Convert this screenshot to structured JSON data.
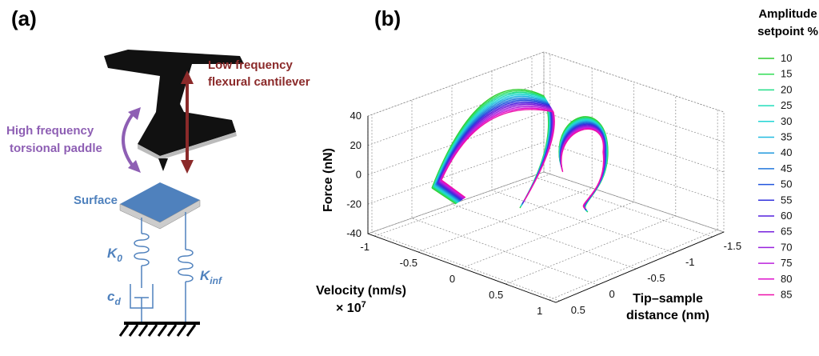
{
  "panel_a": {
    "label": "(a)",
    "flexural": [
      "Low frequency",
      "flexural cantilever"
    ],
    "torsional": [
      "High frequency",
      "torsional paddle"
    ],
    "surface": "Surface",
    "k0": {
      "main": "K",
      "sub": "0"
    },
    "kinf": {
      "main": "K",
      "sub": "inf"
    },
    "cd": {
      "main": "c",
      "sub": "d"
    }
  },
  "panel_b": {
    "label": "(b)",
    "z_axis_label": "Force (nN)",
    "z_ticks": [
      "40",
      "20",
      "0",
      "-20",
      "-40"
    ],
    "x_axis_label": "Velocity (nm/s)",
    "x_scale": {
      "base": "× 10",
      "exponent": "7"
    },
    "x_ticks": [
      "-1",
      "-0.5",
      "0",
      "0.5",
      "1"
    ],
    "y_axis_label": [
      "Tip–sample",
      "distance (nm)"
    ],
    "y_ticks": [
      "0.5",
      "0",
      "-0.5",
      "-1",
      "-1.5"
    ],
    "legend_title": [
      "Amplitude",
      "setpoint %"
    ],
    "legend": [
      {
        "label": "10",
        "color": "#2ecc2e"
      },
      {
        "label": "15",
        "color": "#30dd55"
      },
      {
        "label": "20",
        "color": "#22dd88"
      },
      {
        "label": "25",
        "color": "#22ddbb"
      },
      {
        "label": "30",
        "color": "#22d4d4"
      },
      {
        "label": "35",
        "color": "#22bbe0"
      },
      {
        "label": "40",
        "color": "#2299dd"
      },
      {
        "label": "45",
        "color": "#2277dd"
      },
      {
        "label": "50",
        "color": "#2255dd"
      },
      {
        "label": "55",
        "color": "#3333dd"
      },
      {
        "label": "60",
        "color": "#5522dd"
      },
      {
        "label": "65",
        "color": "#7722dd"
      },
      {
        "label": "70",
        "color": "#9922dd"
      },
      {
        "label": "75",
        "color": "#bb22dd"
      },
      {
        "label": "80",
        "color": "#dd11cc"
      },
      {
        "label": "85",
        "color": "#ee11aa"
      }
    ]
  }
}
